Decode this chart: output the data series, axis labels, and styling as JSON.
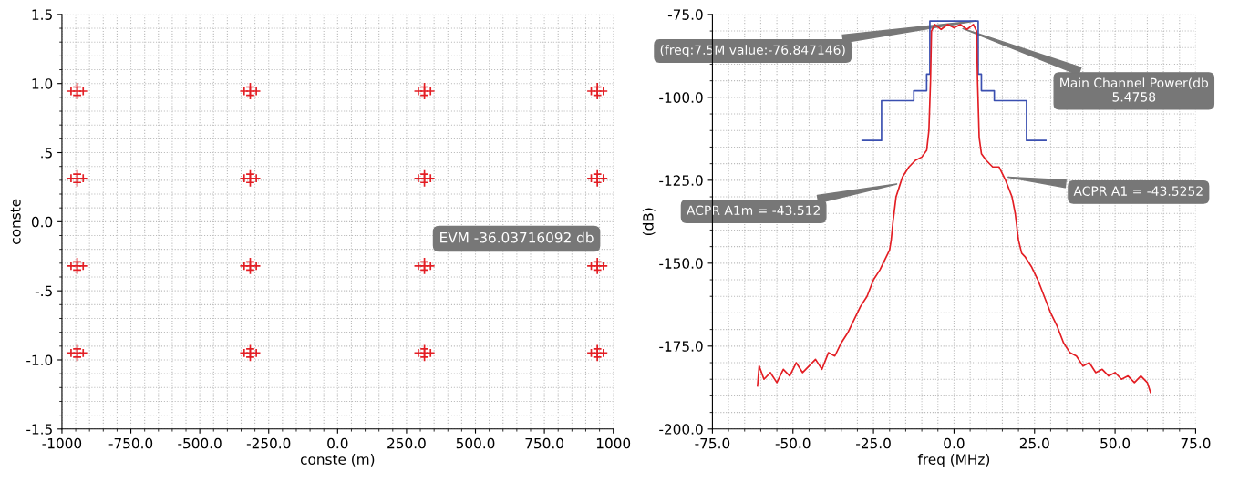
{
  "chart_data": [
    {
      "type": "scatter",
      "xlabel": "conste (m)",
      "ylabel": "conste",
      "grid": true,
      "marker": "cross",
      "xlim": [
        -1000,
        1000
      ],
      "xticks": [
        {
          "value": -1000,
          "label": "-1000"
        },
        {
          "value": -750,
          "label": "-750.0"
        },
        {
          "value": -500,
          "label": "-500.0"
        },
        {
          "value": -250,
          "label": "-250.0"
        },
        {
          "value": 0,
          "label": "0.0"
        },
        {
          "value": 250,
          "label": "250.0"
        },
        {
          "value": 500,
          "label": "500.0"
        },
        {
          "value": 750,
          "label": "750.0"
        },
        {
          "value": 1000,
          "label": "1000"
        }
      ],
      "ylim": [
        -1.5,
        1.5
      ],
      "yticks": [
        {
          "value": -1.5,
          "label": "-1.5"
        },
        {
          "value": -1.0,
          "label": "-1.0"
        },
        {
          "value": -0.5,
          "label": "-.5"
        },
        {
          "value": 0,
          "label": "0.0"
        },
        {
          "value": 0.5,
          "label": ".5"
        },
        {
          "value": 1.0,
          "label": "1.0"
        },
        {
          "value": 1.5,
          "label": "1.5"
        }
      ],
      "annotations": [
        "EVM -36.03716092 db"
      ],
      "series": [
        {
          "color": "#e31e24",
          "x": [
            -945,
            -967,
            -923,
            -945,
            -945,
            -317,
            -339,
            -295,
            -317,
            -317,
            315,
            293,
            337,
            315,
            315,
            942,
            920,
            964,
            942,
            942,
            -945,
            -967,
            -923,
            -945,
            -945,
            -317,
            -339,
            -295,
            -317,
            -317,
            315,
            293,
            337,
            315,
            315,
            942,
            920,
            964,
            942,
            942,
            -945,
            -967,
            -923,
            -945,
            -945,
            -317,
            -339,
            -295,
            -317,
            -317,
            315,
            293,
            337,
            315,
            315,
            942,
            920,
            964,
            942,
            942,
            -945,
            -967,
            -923,
            -945,
            -945,
            -317,
            -339,
            -295,
            -317,
            -317,
            315,
            293,
            337,
            315,
            315,
            942,
            920,
            964,
            942,
            942
          ],
          "values": [
            0.945,
            0.945,
            0.945,
            0.975,
            0.915,
            0.945,
            0.945,
            0.945,
            0.975,
            0.915,
            0.945,
            0.945,
            0.945,
            0.975,
            0.915,
            0.945,
            0.945,
            0.945,
            0.975,
            0.915,
            0.314,
            0.314,
            0.314,
            0.344,
            0.284,
            0.314,
            0.314,
            0.314,
            0.344,
            0.284,
            0.314,
            0.314,
            0.314,
            0.344,
            0.284,
            0.314,
            0.314,
            0.314,
            0.344,
            0.284,
            -0.32,
            -0.32,
            -0.32,
            -0.29,
            -0.35,
            -0.32,
            -0.32,
            -0.32,
            -0.29,
            -0.35,
            -0.32,
            -0.32,
            -0.32,
            -0.29,
            -0.35,
            -0.32,
            -0.32,
            -0.32,
            -0.29,
            -0.35,
            -0.95,
            -0.95,
            -0.95,
            -0.92,
            -0.98,
            -0.95,
            -0.95,
            -0.95,
            -0.92,
            -0.98,
            -0.95,
            -0.95,
            -0.95,
            -0.92,
            -0.98,
            -0.95,
            -0.95,
            -0.95,
            -0.92,
            -0.98
          ]
        }
      ]
    },
    {
      "type": "line",
      "xlabel": "freq (MHz)",
      "ylabel": "(dB)",
      "grid": true,
      "line_style": "solid",
      "xlim": [
        -75,
        75
      ],
      "xticks": [
        {
          "value": -75,
          "label": "-75.0"
        },
        {
          "value": -50,
          "label": "-50.0"
        },
        {
          "value": -25,
          "label": "-25.0"
        },
        {
          "value": 0,
          "label": "0.0"
        },
        {
          "value": 25,
          "label": "25.0"
        },
        {
          "value": 50,
          "label": "50.0"
        },
        {
          "value": 75,
          "label": "75.0"
        }
      ],
      "ylim": [
        -200,
        -75
      ],
      "yticks": [
        {
          "value": -200,
          "label": "-200.0"
        },
        {
          "value": -175,
          "label": "-175.0"
        },
        {
          "value": -150,
          "label": "-150.0"
        },
        {
          "value": -125,
          "label": "-125.0"
        },
        {
          "value": -100,
          "label": "-100.0"
        },
        {
          "value": -75,
          "label": "-75.0"
        }
      ],
      "annotations": [
        {
          "text": "(freq:7.5M value:-76.847146)",
          "x": 7.5,
          "y": -76.847146
        },
        {
          "text": "Main Channel Power(db\n5.4758",
          "x": 2,
          "y": -79
        },
        {
          "text": "ACPR A1m = -43.512",
          "x": -17,
          "y": -126
        },
        {
          "text": "ACPR A1 = -43.5252",
          "x": 16,
          "y": -124
        }
      ],
      "series": [
        {
          "type": "line",
          "color": "#e31e24",
          "x": [
            -61,
            -60.5,
            -59,
            -57,
            -55,
            -53,
            -51,
            -49,
            -47,
            -45,
            -43,
            -41,
            -39,
            -37,
            -35,
            -33,
            -31,
            -29,
            -27,
            -25,
            -23,
            -21,
            -20,
            -19.5,
            -19,
            -18,
            -17,
            -16,
            -14,
            -12,
            -10,
            -8.5,
            -7.8,
            -7.3,
            -7,
            -6,
            -4,
            -2,
            0,
            2,
            4,
            6,
            7,
            7.3,
            7.8,
            8.5,
            10,
            12,
            14,
            16,
            18,
            19,
            20,
            21,
            22,
            24,
            26,
            28,
            30,
            32,
            34,
            36,
            38,
            40,
            42,
            44,
            46,
            48,
            50,
            52,
            54,
            56,
            58,
            60,
            61
          ],
          "values": [
            -187,
            -181,
            -185,
            -183,
            -186,
            -182,
            -184,
            -180,
            -183,
            -181,
            -179,
            -182,
            -177,
            -178,
            -174,
            -171,
            -167,
            -163,
            -160,
            -155,
            -152,
            -148,
            -146,
            -143,
            -138,
            -130,
            -127,
            -124,
            -121,
            -119,
            -118,
            -116,
            -110,
            -95,
            -80,
            -78,
            -79.5,
            -78,
            -79,
            -78,
            -79.5,
            -78,
            -80,
            -95,
            -112,
            -117,
            -119,
            -121,
            -121,
            -125,
            -130,
            -135,
            -143,
            -147,
            -148,
            -151,
            -155,
            -160,
            -165,
            -169,
            -174,
            -177,
            -178,
            -181,
            -180,
            -183,
            -182,
            -184,
            -183,
            -185,
            -184,
            -186,
            -184,
            -186,
            -189
          ]
        },
        {
          "type": "step",
          "color": "#3a4fb0",
          "x": [
            -28.5,
            -22.5,
            -12.5,
            -8.5,
            -7.5,
            7.5,
            8.5,
            12.5,
            22.5,
            28.5
          ],
          "values": [
            -113,
            -101,
            -98,
            -93,
            -77,
            -93,
            -98,
            -101,
            -113,
            -113
          ]
        }
      ]
    }
  ]
}
